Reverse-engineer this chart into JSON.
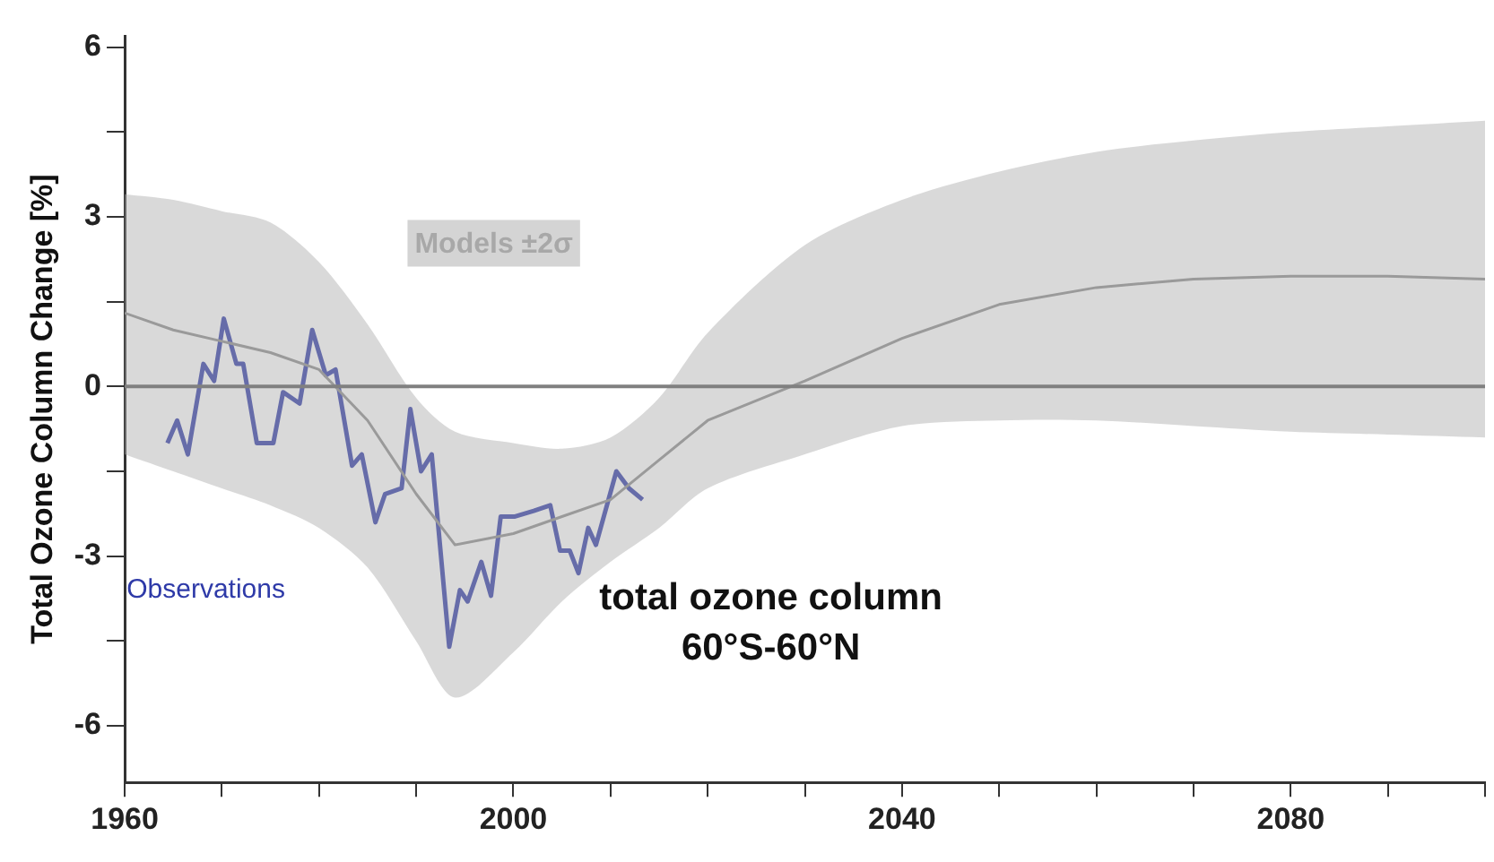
{
  "chart_data": {
    "type": "line",
    "ylabel": "Total Ozone Column Change [%]",
    "xlim": [
      1960,
      2100
    ],
    "xticks": [
      1960,
      {
        "value": 1970,
        "label": null
      },
      {
        "value": 1980,
        "label": null
      },
      {
        "value": 1990,
        "label": null
      },
      2000,
      {
        "value": 2010,
        "label": null
      },
      {
        "value": 2020,
        "label": null
      },
      {
        "value": 2030,
        "label": null
      },
      2040,
      {
        "value": 2050,
        "label": null
      },
      {
        "value": 2060,
        "label": null
      },
      {
        "value": 2070,
        "label": null
      },
      2080,
      {
        "value": 2090,
        "label": null
      },
      {
        "value": 2100,
        "label": null
      }
    ],
    "ylim": [
      -7,
      6.2
    ],
    "yticks": [
      -6,
      {
        "value": -4.5,
        "label": null
      },
      -3,
      {
        "value": -1.5,
        "label": null
      },
      0,
      {
        "value": 1.5,
        "label": null
      },
      3,
      {
        "value": 4.5,
        "label": null
      },
      6
    ],
    "grid": false,
    "legend": false,
    "marker": "none",
    "line_style": "solid",
    "ref_lines": [
      {
        "axis": "y",
        "value": 0,
        "color": "#808080"
      }
    ],
    "annotations": [
      "total ozone column\n60°S-60°N"
    ],
    "series": [
      {
        "name": "Models ±2σ",
        "color": "#8c8c8c",
        "x": [
          1960,
          1965,
          1970,
          1975,
          1980,
          1985,
          1990,
          1994,
          2000,
          2005,
          2010,
          2015,
          2020,
          2030,
          2040,
          2050,
          2060,
          2070,
          2080,
          2090,
          2100
        ],
        "values": [
          1.3,
          1.0,
          0.8,
          0.6,
          0.3,
          -0.6,
          -1.9,
          -2.8,
          -2.6,
          -2.3,
          -2.0,
          -1.3,
          -0.6,
          0.1,
          0.85,
          1.45,
          1.75,
          1.9,
          1.95,
          1.95,
          1.9
        ],
        "upper": [
          3.4,
          3.3,
          3.1,
          2.9,
          2.2,
          1.1,
          -0.2,
          -0.8,
          -1.0,
          -1.1,
          -0.9,
          -0.2,
          0.95,
          2.5,
          3.3,
          3.8,
          4.15,
          4.35,
          4.5,
          4.6,
          4.7
        ],
        "lower": [
          -1.2,
          -1.5,
          -1.8,
          -2.1,
          -2.5,
          -3.2,
          -4.5,
          -5.5,
          -4.7,
          -3.8,
          -3.1,
          -2.5,
          -1.8,
          -1.2,
          -0.7,
          -0.6,
          -0.6,
          -0.7,
          -0.8,
          -0.85,
          -0.9
        ]
      },
      {
        "name": "Observations",
        "color": "#2e3aa8",
        "x": [
          1964.4,
          1965.4,
          1966.5,
          1968.1,
          1969.2,
          1970.2,
          1971.5,
          1972.2,
          1973.6,
          1975.3,
          1976.3,
          1978,
          1979.3,
          1980.7,
          1981.7,
          1983.4,
          1984.4,
          1985.8,
          1986.8,
          1988.5,
          1989.4,
          1990.5,
          1991.6,
          1993.4,
          1994.5,
          1995.3,
          1996.7,
          1997.7,
          1998.7,
          2000.1,
          2002.1,
          2003.8,
          2004.8,
          2005.8,
          2006.7,
          2007.7,
          2008.5,
          2010.6,
          2011.9,
          2013.3
        ],
        "values": [
          -1.0,
          -0.6,
          -1.2,
          0.4,
          0.1,
          1.2,
          0.4,
          0.4,
          -1.0,
          -1.0,
          -0.1,
          -0.3,
          1.0,
          0.2,
          0.3,
          -1.4,
          -1.2,
          -2.4,
          -1.9,
          -1.8,
          -0.4,
          -1.5,
          -1.2,
          -4.6,
          -3.6,
          -3.8,
          -3.1,
          -3.7,
          -2.3,
          -2.3,
          -2.2,
          -2.1,
          -2.9,
          -2.9,
          -3.3,
          -2.5,
          -2.8,
          -1.5,
          -1.8,
          -2.0
        ]
      }
    ]
  }
}
